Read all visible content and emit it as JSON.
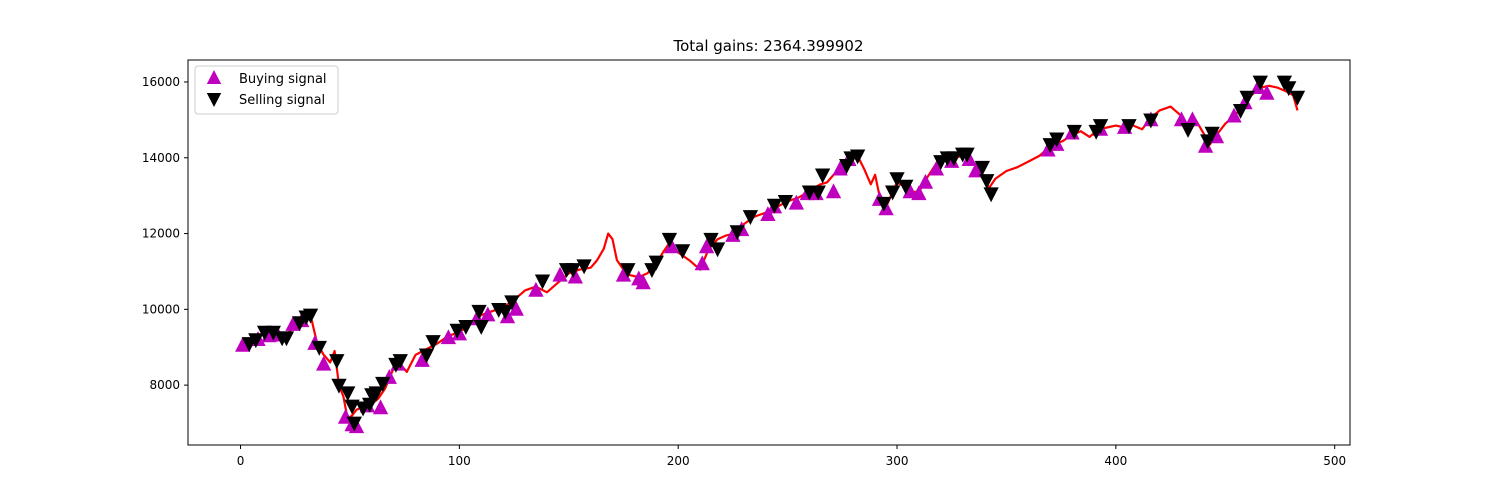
{
  "chart_data": {
    "type": "line",
    "title": "Total gains: 2364.399902",
    "xlabel": "",
    "ylabel": "",
    "xlim": [
      -24,
      507
    ],
    "ylim": [
      6420,
      16580
    ],
    "xticks": [
      0,
      100,
      200,
      300,
      400,
      500
    ],
    "yticks": [
      8000,
      10000,
      12000,
      14000,
      16000
    ],
    "grid": false,
    "legend_position": "top-left",
    "colors": {
      "close": "#ff0000",
      "buy": "#bf00bf",
      "sell": "#000000"
    },
    "close_anchors": [
      [
        0,
        9050
      ],
      [
        5,
        9150
      ],
      [
        10,
        9350
      ],
      [
        15,
        9300
      ],
      [
        20,
        9280
      ],
      [
        25,
        9550
      ],
      [
        30,
        9800
      ],
      [
        32,
        9850
      ],
      [
        35,
        9100
      ],
      [
        38,
        8800
      ],
      [
        41,
        8600
      ],
      [
        43,
        8900
      ],
      [
        45,
        8000
      ],
      [
        47,
        7700
      ],
      [
        49,
        7100
      ],
      [
        51,
        7200
      ],
      [
        53,
        7350
      ],
      [
        55,
        7400
      ],
      [
        57,
        7550
      ],
      [
        60,
        7500
      ],
      [
        63,
        7650
      ],
      [
        66,
        7900
      ],
      [
        70,
        8450
      ],
      [
        73,
        8550
      ],
      [
        76,
        8350
      ],
      [
        80,
        8800
      ],
      [
        85,
        8950
      ],
      [
        90,
        9100
      ],
      [
        95,
        9300
      ],
      [
        100,
        9400
      ],
      [
        105,
        9600
      ],
      [
        110,
        9850
      ],
      [
        115,
        9950
      ],
      [
        120,
        10050
      ],
      [
        125,
        10250
      ],
      [
        130,
        10500
      ],
      [
        135,
        10600
      ],
      [
        140,
        10450
      ],
      [
        145,
        10700
      ],
      [
        150,
        10950
      ],
      [
        155,
        11050
      ],
      [
        160,
        11100
      ],
      [
        163,
        11300
      ],
      [
        166,
        11600
      ],
      [
        168,
        12000
      ],
      [
        170,
        11850
      ],
      [
        172,
        11300
      ],
      [
        175,
        11050
      ],
      [
        178,
        10900
      ],
      [
        182,
        10850
      ],
      [
        186,
        10950
      ],
      [
        190,
        11200
      ],
      [
        193,
        11500
      ],
      [
        196,
        11750
      ],
      [
        200,
        11500
      ],
      [
        205,
        11300
      ],
      [
        210,
        11050
      ],
      [
        214,
        11600
      ],
      [
        218,
        11850
      ],
      [
        222,
        11950
      ],
      [
        226,
        12000
      ],
      [
        230,
        12250
      ],
      [
        235,
        12450
      ],
      [
        240,
        12550
      ],
      [
        245,
        12700
      ],
      [
        250,
        12850
      ],
      [
        255,
        12950
      ],
      [
        258,
        13050
      ],
      [
        262,
        13200
      ],
      [
        265,
        13300
      ],
      [
        268,
        13350
      ],
      [
        271,
        13550
      ],
      [
        274,
        13750
      ],
      [
        278,
        14000
      ],
      [
        282,
        14050
      ],
      [
        285,
        13700
      ],
      [
        288,
        13300
      ],
      [
        290,
        13550
      ],
      [
        292,
        13000
      ],
      [
        295,
        12700
      ],
      [
        298,
        13100
      ],
      [
        300,
        13350
      ],
      [
        303,
        13250
      ],
      [
        306,
        13100
      ],
      [
        310,
        13100
      ],
      [
        314,
        13500
      ],
      [
        318,
        13850
      ],
      [
        322,
        13950
      ],
      [
        326,
        14000
      ],
      [
        330,
        14050
      ],
      [
        333,
        14000
      ],
      [
        336,
        13800
      ],
      [
        339,
        13550
      ],
      [
        342,
        13200
      ],
      [
        345,
        13450
      ],
      [
        350,
        13650
      ],
      [
        355,
        13750
      ],
      [
        360,
        13900
      ],
      [
        365,
        14050
      ],
      [
        369,
        14250
      ],
      [
        372,
        14350
      ],
      [
        376,
        14450
      ],
      [
        380,
        14600
      ],
      [
        384,
        14700
      ],
      [
        388,
        14550
      ],
      [
        392,
        14750
      ],
      [
        396,
        14800
      ],
      [
        400,
        14850
      ],
      [
        404,
        14800
      ],
      [
        408,
        14850
      ],
      [
        412,
        14750
      ],
      [
        416,
        15050
      ],
      [
        420,
        15250
      ],
      [
        425,
        15350
      ],
      [
        430,
        15100
      ],
      [
        433,
        14850
      ],
      [
        436,
        15050
      ],
      [
        440,
        14650
      ],
      [
        443,
        14350
      ],
      [
        446,
        14600
      ],
      [
        450,
        14900
      ],
      [
        454,
        15100
      ],
      [
        458,
        15350
      ],
      [
        462,
        15650
      ],
      [
        466,
        15850
      ],
      [
        470,
        15900
      ],
      [
        474,
        15850
      ],
      [
        478,
        15750
      ],
      [
        481,
        15650
      ],
      [
        483,
        15250
      ]
    ],
    "series": [
      {
        "name": "Buying signal",
        "marker": "triangle-up",
        "points": [
          [
            1,
            9050
          ],
          [
            8,
            9200
          ],
          [
            13,
            9300
          ],
          [
            17,
            9320
          ],
          [
            24,
            9600
          ],
          [
            28,
            9700
          ],
          [
            34,
            9100
          ],
          [
            38,
            8550
          ],
          [
            48,
            7150
          ],
          [
            51,
            6950
          ],
          [
            53,
            6900
          ],
          [
            58,
            7450
          ],
          [
            64,
            7400
          ],
          [
            68,
            8200
          ],
          [
            72,
            8550
          ],
          [
            83,
            8650
          ],
          [
            95,
            9250
          ],
          [
            100,
            9350
          ],
          [
            108,
            9750
          ],
          [
            113,
            9850
          ],
          [
            122,
            9800
          ],
          [
            126,
            10000
          ],
          [
            135,
            10500
          ],
          [
            146,
            10900
          ],
          [
            153,
            10850
          ],
          [
            175,
            10900
          ],
          [
            182,
            10800
          ],
          [
            184,
            10700
          ],
          [
            197,
            11650
          ],
          [
            211,
            11200
          ],
          [
            213,
            11650
          ],
          [
            225,
            11950
          ],
          [
            229,
            12100
          ],
          [
            241,
            12500
          ],
          [
            244,
            12700
          ],
          [
            254,
            12800
          ],
          [
            259,
            13050
          ],
          [
            263,
            13050
          ],
          [
            271,
            13100
          ],
          [
            274,
            13700
          ],
          [
            278,
            13950
          ],
          [
            292,
            12900
          ],
          [
            295,
            12650
          ],
          [
            306,
            13100
          ],
          [
            310,
            13050
          ],
          [
            313,
            13350
          ],
          [
            318,
            13700
          ],
          [
            325,
            13900
          ],
          [
            333,
            13950
          ],
          [
            336,
            13650
          ],
          [
            369,
            14200
          ],
          [
            373,
            14350
          ],
          [
            380,
            14650
          ],
          [
            393,
            14750
          ],
          [
            404,
            14800
          ],
          [
            416,
            15000
          ],
          [
            430,
            15000
          ],
          [
            435,
            15000
          ],
          [
            441,
            14300
          ],
          [
            446,
            14550
          ],
          [
            454,
            15100
          ],
          [
            459,
            15450
          ],
          [
            465,
            15850
          ],
          [
            469,
            15700
          ]
        ]
      },
      {
        "name": "Selling signal",
        "marker": "triangle-down",
        "points": [
          [
            4,
            9100
          ],
          [
            7,
            9200
          ],
          [
            11,
            9400
          ],
          [
            15,
            9400
          ],
          [
            19,
            9250
          ],
          [
            21,
            9250
          ],
          [
            27,
            9650
          ],
          [
            30,
            9800
          ],
          [
            32,
            9850
          ],
          [
            36,
            9000
          ],
          [
            44,
            8650
          ],
          [
            45,
            8000
          ],
          [
            49,
            7800
          ],
          [
            51,
            7450
          ],
          [
            52,
            7000
          ],
          [
            56,
            7400
          ],
          [
            59,
            7500
          ],
          [
            60,
            7750
          ],
          [
            62,
            7800
          ],
          [
            65,
            8050
          ],
          [
            71,
            8550
          ],
          [
            73,
            8650
          ],
          [
            85,
            8800
          ],
          [
            88,
            9150
          ],
          [
            99,
            9450
          ],
          [
            103,
            9550
          ],
          [
            109,
            9950
          ],
          [
            110,
            9550
          ],
          [
            118,
            10000
          ],
          [
            121,
            9950
          ],
          [
            124,
            10200
          ],
          [
            138,
            10750
          ],
          [
            149,
            11050
          ],
          [
            152,
            11050
          ],
          [
            157,
            11150
          ],
          [
            177,
            11050
          ],
          [
            188,
            11050
          ],
          [
            190,
            11250
          ],
          [
            196,
            11850
          ],
          [
            202,
            11550
          ],
          [
            215,
            11850
          ],
          [
            218,
            11600
          ],
          [
            227,
            12050
          ],
          [
            233,
            12450
          ],
          [
            244,
            12750
          ],
          [
            249,
            12850
          ],
          [
            260,
            13100
          ],
          [
            264,
            13100
          ],
          [
            266,
            13550
          ],
          [
            277,
            13800
          ],
          [
            279,
            14000
          ],
          [
            282,
            14050
          ],
          [
            294,
            12800
          ],
          [
            298,
            13100
          ],
          [
            300,
            13450
          ],
          [
            304,
            13250
          ],
          [
            320,
            13900
          ],
          [
            323,
            14000
          ],
          [
            326,
            14000
          ],
          [
            330,
            14100
          ],
          [
            332,
            14100
          ],
          [
            339,
            13750
          ],
          [
            341,
            13400
          ],
          [
            343,
            13050
          ],
          [
            370,
            14350
          ],
          [
            373,
            14500
          ],
          [
            381,
            14700
          ],
          [
            391,
            14700
          ],
          [
            393,
            14850
          ],
          [
            406,
            14850
          ],
          [
            416,
            15000
          ],
          [
            433,
            14750
          ],
          [
            442,
            14450
          ],
          [
            444,
            14650
          ],
          [
            457,
            15250
          ],
          [
            460,
            15600
          ],
          [
            466,
            16000
          ],
          [
            477,
            16000
          ],
          [
            479,
            15850
          ],
          [
            483,
            15600
          ]
        ]
      }
    ]
  }
}
